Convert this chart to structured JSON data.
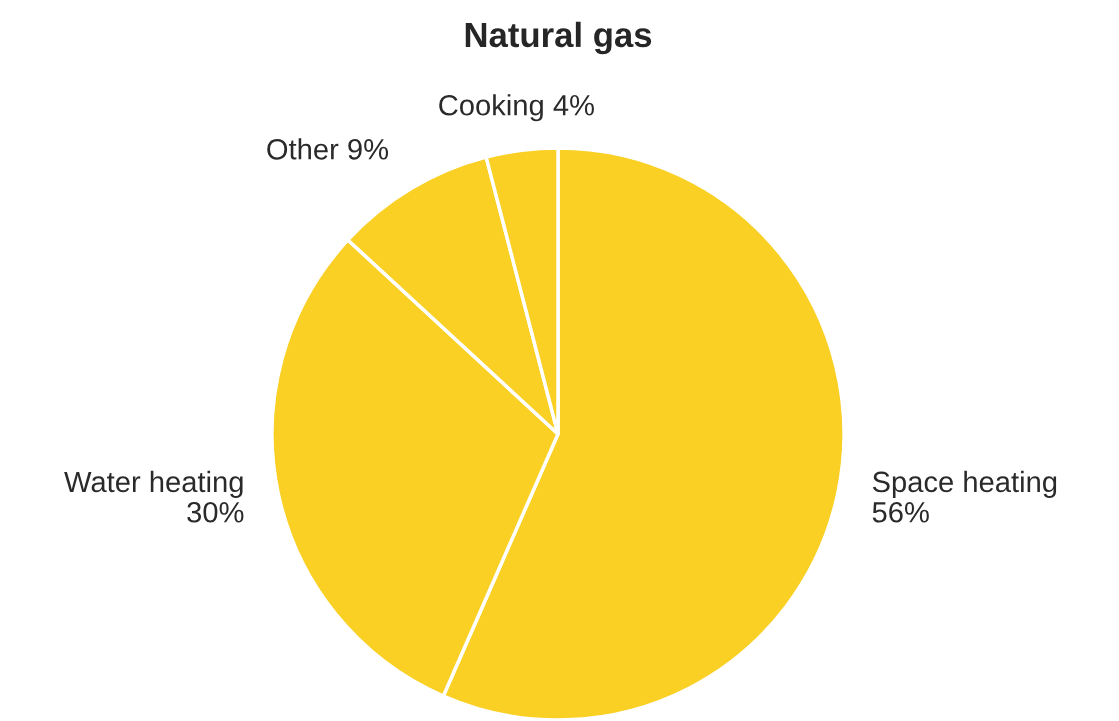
{
  "chart_data": {
    "type": "pie",
    "title": "Natural gas",
    "categories": [
      "Space heating",
      "Water heating",
      "Other",
      "Cooking"
    ],
    "values": [
      56,
      30,
      9,
      4
    ],
    "colors": [
      "#f9d023",
      "#f9d023",
      "#f9d023",
      "#f9d023"
    ],
    "value_labels": [
      "56%",
      "30%",
      "9%",
      "4%"
    ]
  }
}
